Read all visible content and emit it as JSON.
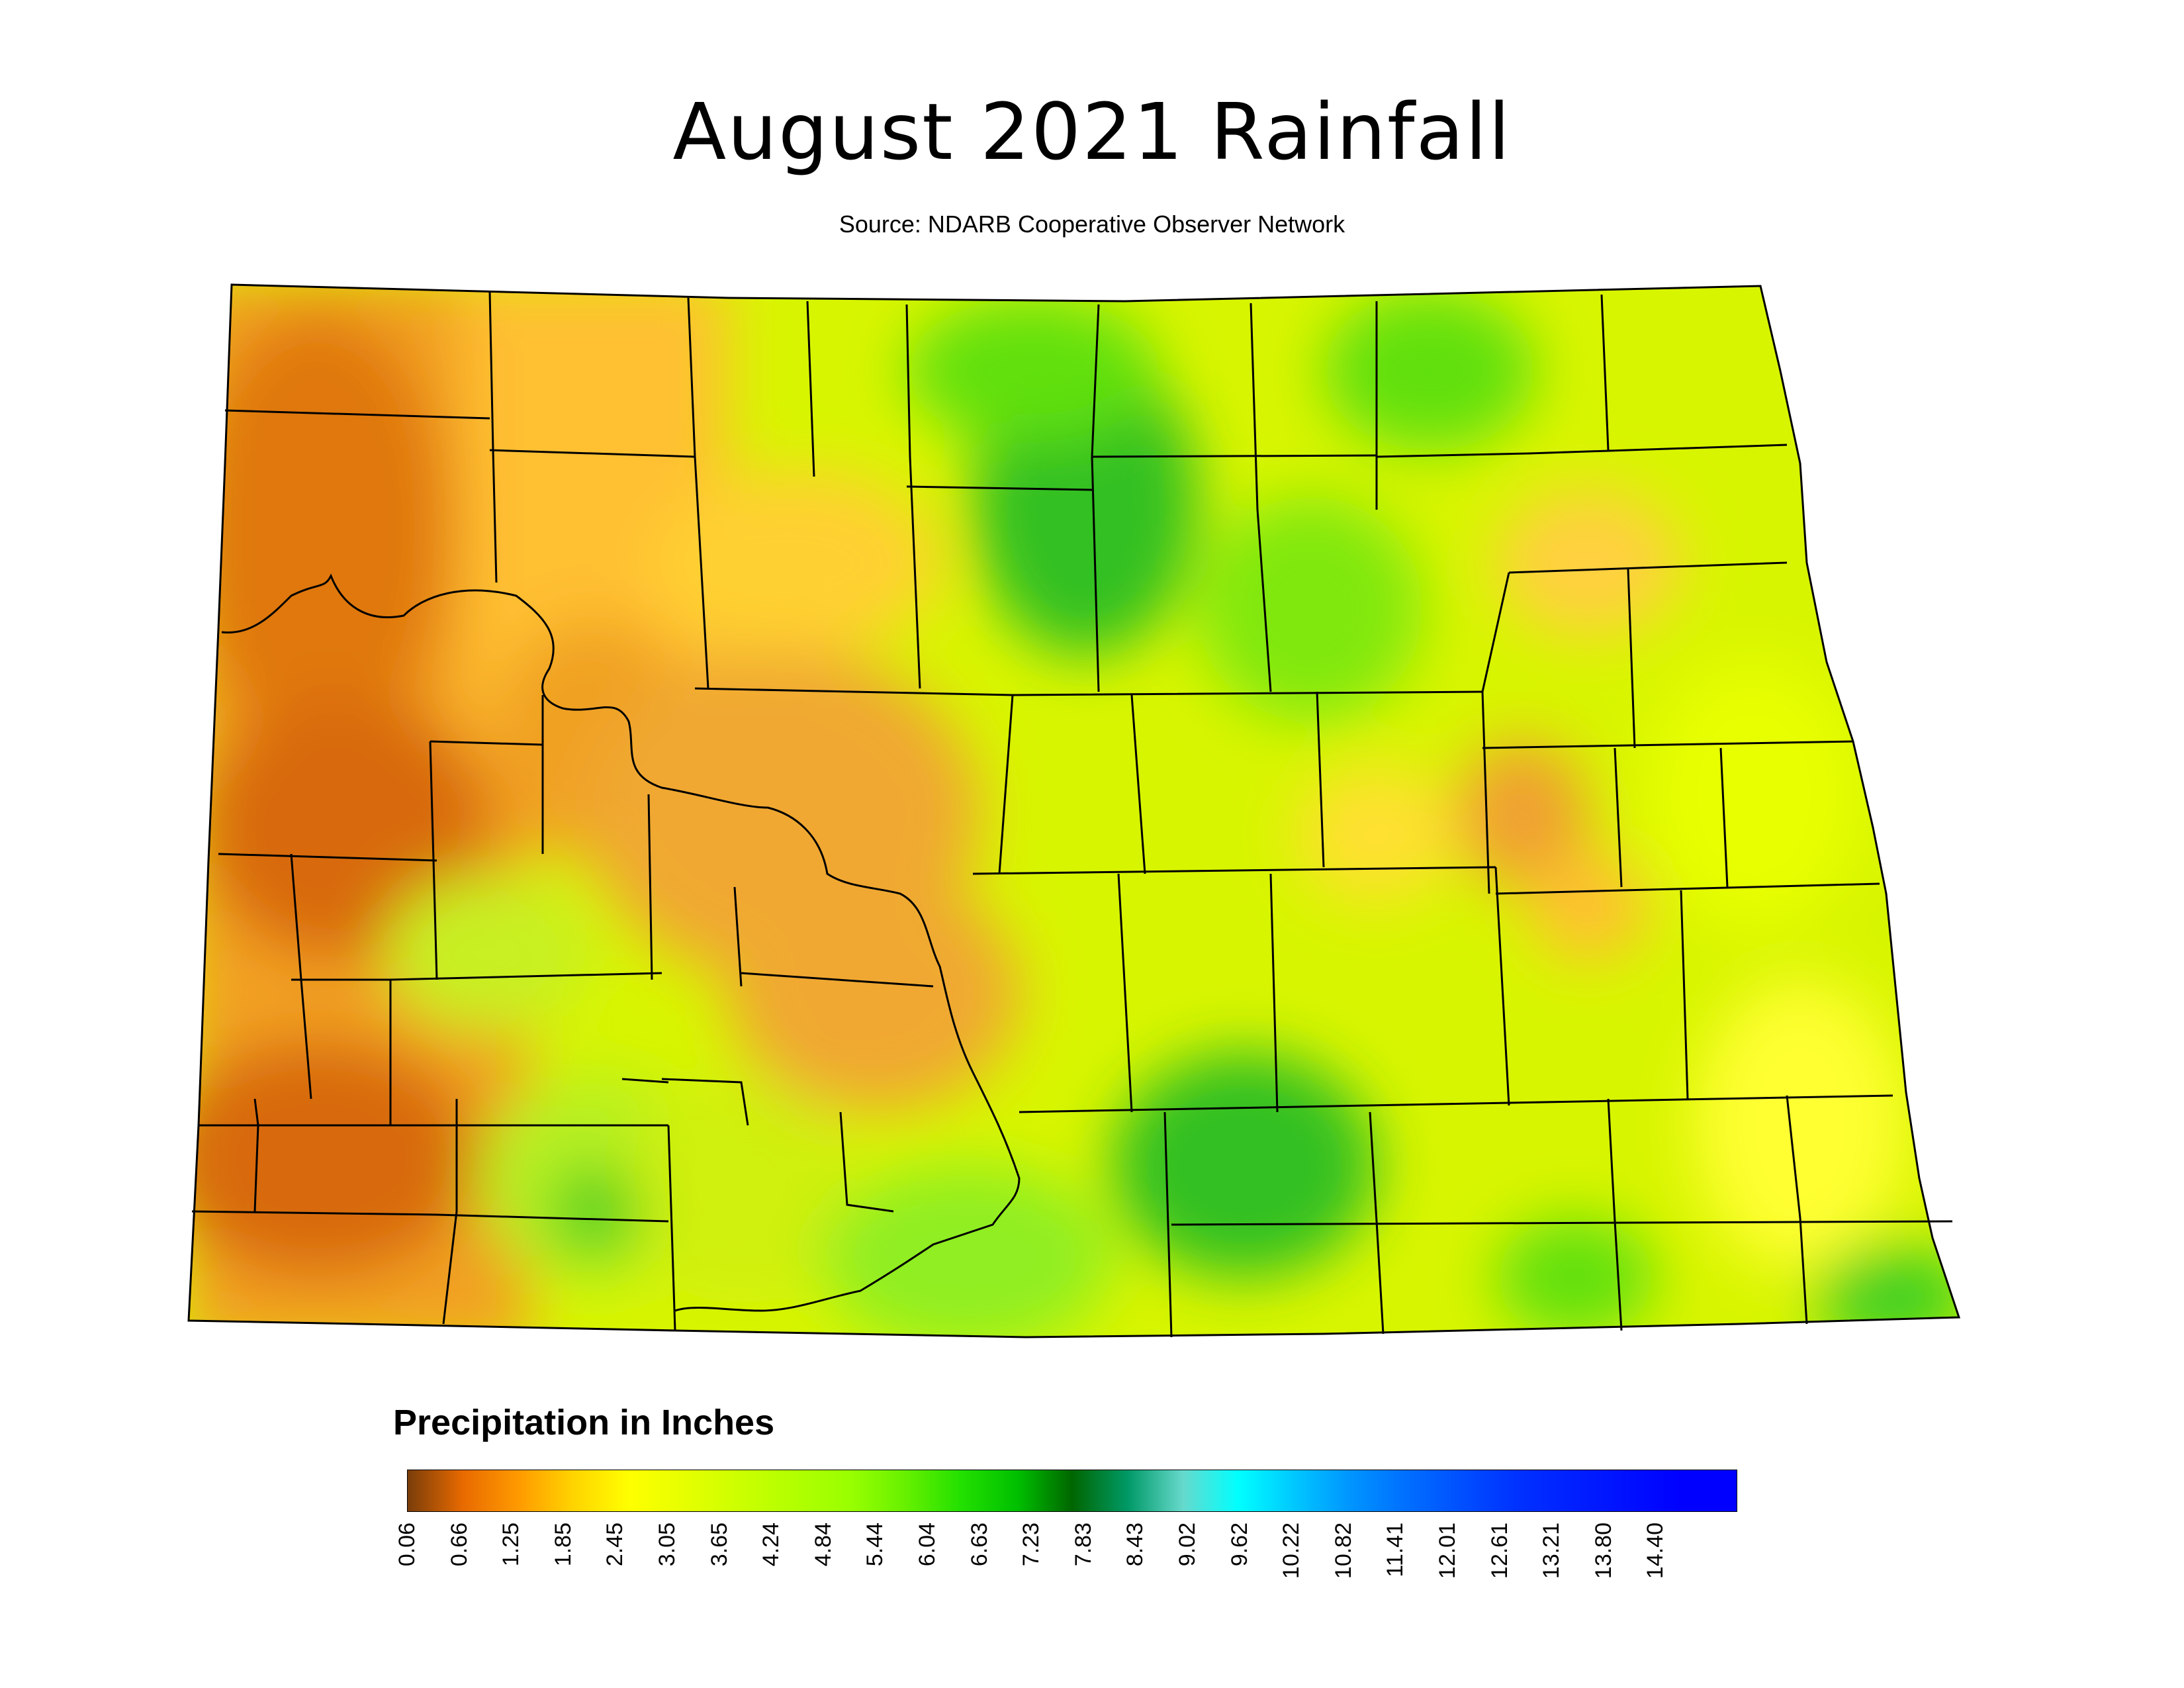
{
  "title": "August 2021 Rainfall",
  "subtitle": "Source: NDARB Cooperative Observer Network",
  "legend": {
    "title": "Precipitation in Inches",
    "ticks": [
      "0.06",
      "0.66",
      "1.25",
      "1.85",
      "2.45",
      "3.05",
      "3.65",
      "4.24",
      "4.84",
      "5.44",
      "6.04",
      "6.63",
      "7.23",
      "7.83",
      "8.43",
      "9.02",
      "9.62",
      "10.22",
      "10.82",
      "11.41",
      "12.01",
      "12.61",
      "13.21",
      "13.80",
      "14.40"
    ],
    "colors": [
      "#7a3d0a",
      "#e86a00",
      "#ff9a00",
      "#ffd400",
      "#ffff00",
      "#e6ff00",
      "#ccff00",
      "#b2ff00",
      "#99ff00",
      "#66f000",
      "#22e000",
      "#00c000",
      "#006600",
      "#009966",
      "#66d9cc",
      "#00ffff",
      "#00c8ff",
      "#0096ff",
      "#0070ff",
      "#0050ff",
      "#0032ff",
      "#0020ff",
      "#0010ff",
      "#0000ff",
      "#0000ff"
    ]
  },
  "map": {
    "region": "North Dakota counties",
    "palette": {
      "darkBrown": "#b8560a",
      "orange": "#f09a1a",
      "lightOrange": "#ffc21a",
      "yellow": "#ffee00",
      "yellowGreen": "#d6f500",
      "lightGreen": "#a8f000",
      "green": "#5ae000",
      "darkGreen": "#18b818",
      "border": "#000000"
    }
  }
}
